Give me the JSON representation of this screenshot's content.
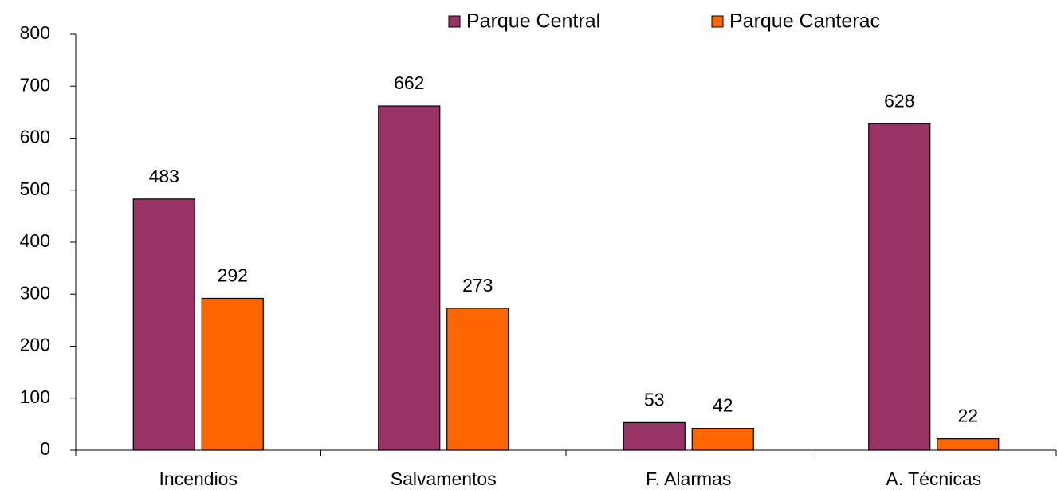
{
  "chart_data": {
    "type": "bar",
    "categories": [
      "Incendios",
      "Salvamentos",
      "F. Alarmas",
      "A. Técnicas"
    ],
    "series": [
      {
        "name": "Parque Central",
        "color": "#993366",
        "values": [
          483,
          662,
          53,
          628
        ]
      },
      {
        "name": "Parque Canterac",
        "color": "#ff6600",
        "values": [
          292,
          273,
          42,
          22
        ]
      }
    ],
    "ylim": [
      0,
      800
    ],
    "yticks": [
      0,
      100,
      200,
      300,
      400,
      500,
      600,
      700,
      800
    ],
    "grid": false,
    "legend": "top"
  }
}
